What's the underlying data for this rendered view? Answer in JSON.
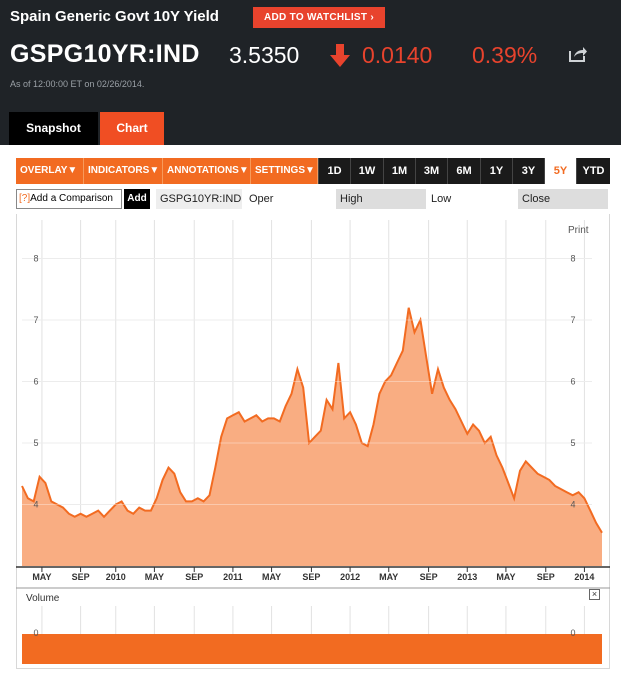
{
  "header": {
    "title": "Spain Generic Govt 10Y Yield",
    "watchlist_label": "ADD TO WATCHLIST",
    "ticker": "GSPG10YR:IND",
    "price": "3.5350",
    "change": "0.0140",
    "change_pct": "0.39%",
    "change_direction": "down",
    "as_of": "As of 12:00:00 ET on 02/26/2014.",
    "colors": {
      "background": "#1f2327",
      "accent": "#e8432d"
    }
  },
  "tabs": [
    {
      "label": "Snapshot",
      "active": false
    },
    {
      "label": "Chart",
      "active": true
    }
  ],
  "toolbar": {
    "menus": [
      "OVERLAY",
      "INDICATORS",
      "ANNOTATIONS",
      "SETTINGS"
    ],
    "ranges": [
      "1D",
      "1W",
      "1M",
      "3M",
      "6M",
      "1Y",
      "3Y",
      "5Y",
      "YTD"
    ],
    "active_range": "5Y"
  },
  "compare": {
    "placeholder": "Add a Comparison",
    "help_glyph": "[?]",
    "add_label": "Add"
  },
  "ohlc": {
    "symbol": "GSPG10YR:IND",
    "open": "Oper",
    "high": "High",
    "low": "Low",
    "close": "Close"
  },
  "print_label": "Print",
  "volume_label": "Volume",
  "close_glyph": "×",
  "chart_data": {
    "type": "area",
    "fill_color": "#f9ad82",
    "line_color": "#f26b21",
    "y_ticks": [
      4,
      5,
      6,
      7,
      8
    ],
    "volume_ticks": [
      0
    ],
    "ylim": [
      3.0,
      8.3
    ],
    "xlim": [
      2009.2,
      2014.15
    ],
    "x_tick_labels": [
      {
        "label": "MAY",
        "x": 2009.37
      },
      {
        "label": "SEP",
        "x": 2009.7
      },
      {
        "label": "2010",
        "x": 2010.0
      },
      {
        "label": "MAY",
        "x": 2010.33
      },
      {
        "label": "SEP",
        "x": 2010.67
      },
      {
        "label": "2011",
        "x": 2011.0
      },
      {
        "label": "MAY",
        "x": 2011.33
      },
      {
        "label": "SEP",
        "x": 2011.67
      },
      {
        "label": "2012",
        "x": 2012.0
      },
      {
        "label": "MAY",
        "x": 2012.33
      },
      {
        "label": "SEP",
        "x": 2012.67
      },
      {
        "label": "2013",
        "x": 2013.0
      },
      {
        "label": "MAY",
        "x": 2013.33
      },
      {
        "label": "SEP",
        "x": 2013.67
      },
      {
        "label": "2014",
        "x": 2014.0
      }
    ],
    "x": [
      2009.2,
      2009.25,
      2009.3,
      2009.35,
      2009.4,
      2009.45,
      2009.5,
      2009.55,
      2009.6,
      2009.65,
      2009.7,
      2009.75,
      2009.8,
      2009.85,
      2009.9,
      2009.95,
      2010.0,
      2010.05,
      2010.1,
      2010.15,
      2010.2,
      2010.25,
      2010.3,
      2010.35,
      2010.4,
      2010.45,
      2010.5,
      2010.55,
      2010.6,
      2010.65,
      2010.7,
      2010.75,
      2010.8,
      2010.85,
      2010.9,
      2010.95,
      2011.0,
      2011.05,
      2011.1,
      2011.15,
      2011.2,
      2011.25,
      2011.3,
      2011.35,
      2011.4,
      2011.45,
      2011.5,
      2011.55,
      2011.6,
      2011.65,
      2011.7,
      2011.75,
      2011.8,
      2011.85,
      2011.9,
      2011.95,
      2012.0,
      2012.05,
      2012.1,
      2012.15,
      2012.2,
      2012.25,
      2012.3,
      2012.35,
      2012.4,
      2012.45,
      2012.5,
      2012.55,
      2012.6,
      2012.65,
      2012.7,
      2012.75,
      2012.8,
      2012.85,
      2012.9,
      2012.95,
      2013.0,
      2013.05,
      2013.1,
      2013.15,
      2013.2,
      2013.25,
      2013.3,
      2013.35,
      2013.4,
      2013.45,
      2013.5,
      2013.55,
      2013.6,
      2013.65,
      2013.7,
      2013.75,
      2013.8,
      2013.85,
      2013.9,
      2013.95,
      2014.0,
      2014.05,
      2014.1,
      2014.15
    ],
    "values": [
      4.3,
      4.1,
      4.05,
      4.45,
      4.35,
      4.05,
      4.0,
      3.95,
      3.85,
      3.8,
      3.85,
      3.8,
      3.85,
      3.9,
      3.8,
      3.9,
      4.0,
      4.05,
      3.9,
      3.85,
      3.95,
      3.9,
      3.9,
      4.1,
      4.4,
      4.6,
      4.5,
      4.2,
      4.05,
      4.05,
      4.1,
      4.05,
      4.15,
      4.6,
      5.1,
      5.4,
      5.45,
      5.5,
      5.35,
      5.4,
      5.45,
      5.35,
      5.4,
      5.4,
      5.35,
      5.6,
      5.8,
      6.2,
      5.9,
      5.0,
      5.1,
      5.2,
      5.7,
      5.55,
      6.3,
      5.4,
      5.5,
      5.3,
      5.0,
      4.95,
      5.3,
      5.8,
      6.0,
      6.1,
      6.3,
      6.5,
      7.2,
      6.8,
      7.0,
      6.4,
      5.8,
      6.2,
      5.9,
      5.7,
      5.55,
      5.35,
      5.15,
      5.3,
      5.2,
      5.0,
      5.1,
      4.8,
      4.6,
      4.35,
      4.1,
      4.55,
      4.7,
      4.6,
      4.5,
      4.45,
      4.4,
      4.3,
      4.25,
      4.2,
      4.15,
      4.2,
      4.1,
      3.9,
      3.7,
      3.54
    ]
  }
}
